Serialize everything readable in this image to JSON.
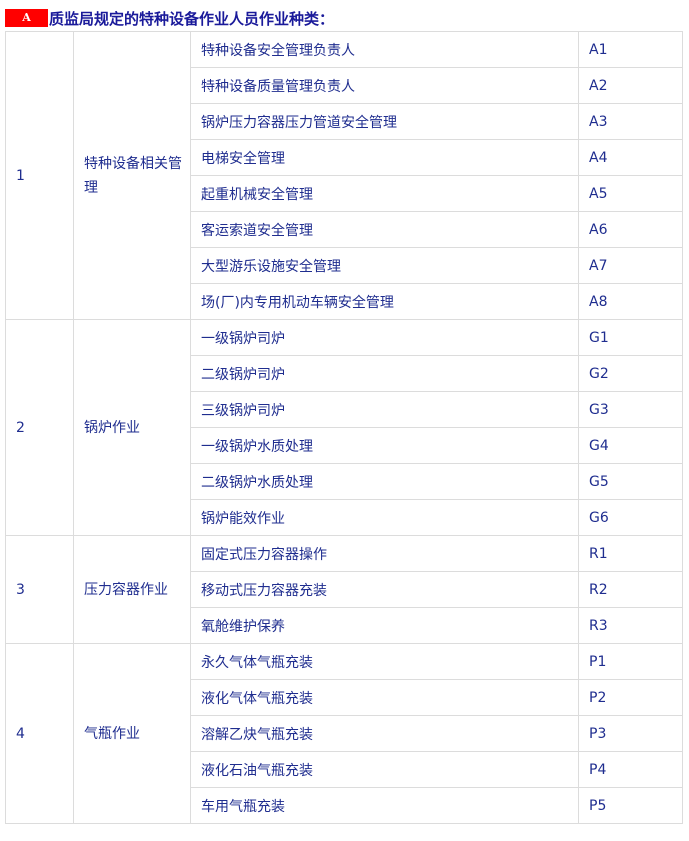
{
  "header": {
    "badge": "A",
    "title": "质监局规定的特种设备作业人员作业种类："
  },
  "groups": [
    {
      "no": "1",
      "name": "特种设备相关管理",
      "items": [
        {
          "name": "特种设备安全管理负责人",
          "code": "A1"
        },
        {
          "name": "特种设备质量管理负责人",
          "code": "A2"
        },
        {
          "name": "锅炉压力容器压力管道安全管理",
          "code": "A3"
        },
        {
          "name": "电梯安全管理",
          "code": "A4"
        },
        {
          "name": "起重机械安全管理",
          "code": "A5"
        },
        {
          "name": "客运索道安全管理",
          "code": "A6"
        },
        {
          "name": "大型游乐设施安全管理",
          "code": "A7"
        },
        {
          "name": "场(厂)内专用机动车辆安全管理",
          "code": "A8"
        }
      ]
    },
    {
      "no": "2",
      "name": "锅炉作业",
      "items": [
        {
          "name": "一级锅炉司炉",
          "code": "G1"
        },
        {
          "name": "二级锅炉司炉",
          "code": "G2"
        },
        {
          "name": "三级锅炉司炉",
          "code": "G3"
        },
        {
          "name": "一级锅炉水质处理",
          "code": "G4"
        },
        {
          "name": "二级锅炉水质处理",
          "code": "G5"
        },
        {
          "name": "锅炉能效作业",
          "code": "G6"
        }
      ]
    },
    {
      "no": "3",
      "name": "压力容器作业",
      "items": [
        {
          "name": "固定式压力容器操作",
          "code": "R1"
        },
        {
          "name": "移动式压力容器充装",
          "code": "R2"
        },
        {
          "name": "氧舱维护保养",
          "code": "R3"
        }
      ]
    },
    {
      "no": "4",
      "name": "气瓶作业",
      "items": [
        {
          "name": "永久气体气瓶充装",
          "code": "P1"
        },
        {
          "name": "液化气体气瓶充装",
          "code": "P2"
        },
        {
          "name": "溶解乙炔气瓶充装",
          "code": "P3"
        },
        {
          "name": "液化石油气瓶充装",
          "code": "P4"
        },
        {
          "name": "车用气瓶充装",
          "code": "P5"
        }
      ]
    }
  ]
}
